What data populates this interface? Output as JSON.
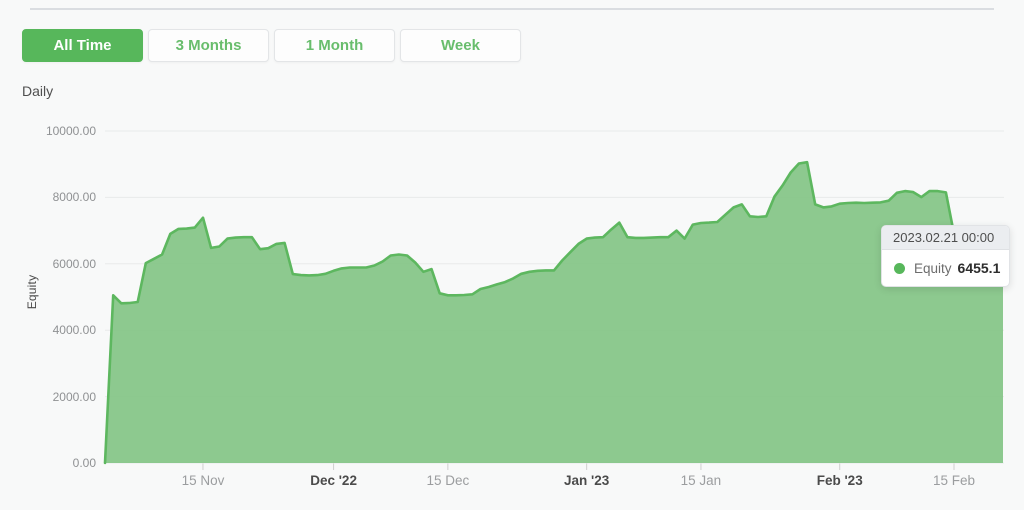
{
  "controls": {
    "frequency_label": "Daily",
    "range_buttons": [
      {
        "label": "All Time",
        "active": true
      },
      {
        "label": "3 Months",
        "active": false
      },
      {
        "label": "1 Month",
        "active": false
      },
      {
        "label": "Week",
        "active": false
      }
    ]
  },
  "tooltip": {
    "datetime": "2023.02.21 00:00",
    "series": "Equity",
    "value": "6455.1"
  },
  "chart_data": {
    "type": "area",
    "title": "",
    "xlabel": "",
    "ylabel": "Equity",
    "series_name": "Equity",
    "frequency": "Daily",
    "ylim": [
      0,
      10000
    ],
    "grid": true,
    "start_date": "2022-11-03",
    "end_date": "2023-02-21",
    "y_ticks": [
      {
        "label": "0.00",
        "value": 0
      },
      {
        "label": "2000.00",
        "value": 2000
      },
      {
        "label": "4000.00",
        "value": 4000
      },
      {
        "label": "6000.00",
        "value": 6000
      },
      {
        "label": "8000.00",
        "value": 8000
      },
      {
        "label": "10000.00",
        "value": 10000
      }
    ],
    "x_ticks": [
      {
        "label": "15 Nov",
        "day": 12,
        "bold": false
      },
      {
        "label": "Dec '22",
        "day": 28,
        "bold": true
      },
      {
        "label": "15 Dec",
        "day": 42,
        "bold": false
      },
      {
        "label": "Jan '23",
        "day": 59,
        "bold": true
      },
      {
        "label": "15 Jan",
        "day": 73,
        "bold": false
      },
      {
        "label": "Feb '23",
        "day": 90,
        "bold": true
      },
      {
        "label": "15 Feb",
        "day": 104,
        "bold": false
      }
    ],
    "values": [
      0,
      5050,
      4810,
      4820,
      4850,
      6020,
      6150,
      6280,
      6900,
      7050,
      7060,
      7090,
      7390,
      6480,
      6520,
      6760,
      6790,
      6800,
      6800,
      6440,
      6470,
      6600,
      6630,
      5690,
      5660,
      5650,
      5660,
      5700,
      5790,
      5860,
      5890,
      5890,
      5890,
      5950,
      6070,
      6250,
      6280,
      6250,
      6040,
      5760,
      5840,
      5110,
      5050,
      5050,
      5060,
      5080,
      5240,
      5300,
      5380,
      5450,
      5560,
      5700,
      5760,
      5790,
      5800,
      5800,
      6100,
      6350,
      6600,
      6760,
      6790,
      6800,
      7030,
      7240,
      6800,
      6780,
      6780,
      6790,
      6800,
      6800,
      7000,
      6760,
      7180,
      7230,
      7240,
      7260,
      7480,
      7700,
      7790,
      7430,
      7410,
      7430,
      8020,
      8360,
      8750,
      9020,
      9060,
      7790,
      7700,
      7730,
      7810,
      7830,
      7840,
      7830,
      7840,
      7850,
      7900,
      8140,
      8190,
      8160,
      8010,
      8190,
      8190,
      8150,
      6900,
      6550,
      6500,
      6520,
      6490,
      6470,
      6455.1
    ],
    "colors": {
      "fill": "#87c689",
      "stroke": "#5db75f",
      "accent": "#57b75b",
      "grid": "#e9eaea",
      "tick": "#cfcfcf"
    }
  }
}
